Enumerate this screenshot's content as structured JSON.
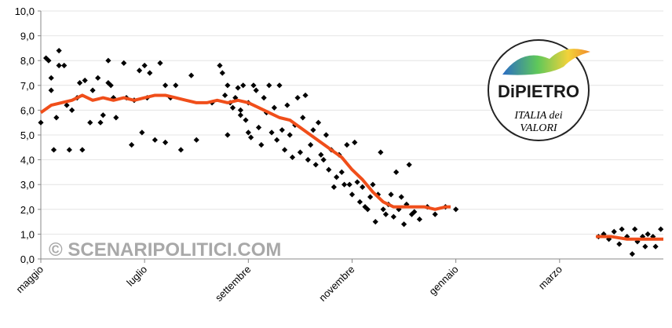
{
  "chart_data": {
    "type": "scatter",
    "xlim": [
      0,
      12
    ],
    "xticks": [
      {
        "value": 0,
        "label": "maggio"
      },
      {
        "value": 2,
        "label": "luglio"
      },
      {
        "value": 4,
        "label": "settembre"
      },
      {
        "value": 6,
        "label": "novembre"
      },
      {
        "value": 8,
        "label": "gennaio"
      },
      {
        "value": 10,
        "label": "marzo"
      }
    ],
    "ylim": [
      0,
      10
    ],
    "yticks": [
      {
        "value": 0,
        "label": "0,0"
      },
      {
        "value": 1,
        "label": "1,0"
      },
      {
        "value": 2,
        "label": "2,0"
      },
      {
        "value": 3,
        "label": "3,0"
      },
      {
        "value": 4,
        "label": "4,0"
      },
      {
        "value": 5,
        "label": "5,0"
      },
      {
        "value": 6,
        "label": "6,0"
      },
      {
        "value": 7,
        "label": "7,0"
      },
      {
        "value": 8,
        "label": "8,0"
      },
      {
        "value": 9,
        "label": "9,0"
      },
      {
        "value": 10,
        "label": "10,0"
      }
    ],
    "grid": true,
    "watermark": "© SCENARIPOLITICI.COM",
    "logo": {
      "title": "DiPIETRO",
      "subtitle": [
        "ITALIA dei",
        "VALORI"
      ]
    },
    "series": [
      {
        "mode": "markers",
        "color": "#000000",
        "x": [
          0.0,
          0.1,
          0.15,
          0.2,
          0.2,
          0.25,
          0.3,
          0.35,
          0.35,
          0.45,
          0.5,
          0.55,
          0.6,
          0.7,
          0.75,
          0.8,
          0.85,
          0.95,
          1.0,
          1.1,
          1.15,
          1.2,
          1.3,
          1.3,
          1.35,
          1.4,
          1.45,
          1.6,
          1.65,
          1.75,
          1.8,
          1.9,
          1.95,
          2.0,
          2.05,
          2.1,
          2.2,
          2.3,
          2.4,
          2.4,
          2.5,
          2.6,
          2.7,
          2.9,
          3.0,
          3.3,
          3.6,
          3.85,
          3.45,
          3.5,
          3.55,
          3.6,
          3.65,
          3.7,
          3.75,
          3.8,
          3.85,
          3.9,
          3.95,
          4.0,
          4.0,
          4.05,
          4.1,
          4.15,
          4.2,
          4.25,
          4.3,
          4.35,
          4.4,
          4.45,
          4.5,
          4.55,
          4.6,
          4.65,
          4.7,
          4.75,
          4.8,
          4.85,
          4.9,
          4.95,
          5.0,
          5.05,
          5.1,
          5.15,
          5.2,
          5.25,
          5.3,
          5.35,
          5.4,
          5.45,
          5.5,
          5.55,
          5.6,
          5.65,
          5.7,
          5.75,
          5.8,
          5.85,
          5.9,
          5.95,
          6.0,
          6.05,
          6.1,
          6.15,
          6.2,
          6.25,
          6.3,
          6.35,
          6.4,
          6.45,
          6.5,
          6.55,
          6.6,
          6.65,
          6.7,
          6.75,
          6.8,
          6.85,
          6.9,
          6.95,
          7.0,
          7.05,
          7.1,
          7.15,
          7.2,
          7.3,
          7.45,
          7.6,
          7.8,
          8.0,
          10.75,
          10.85,
          10.95,
          11.05,
          11.15,
          11.2,
          11.3,
          11.4,
          11.45,
          11.5,
          11.6,
          11.65,
          11.7,
          11.8,
          11.85,
          11.95
        ],
        "values": [
          5.5,
          8.1,
          8.0,
          7.3,
          6.8,
          4.4,
          5.7,
          8.4,
          7.8,
          7.8,
          6.2,
          4.4,
          6.0,
          6.5,
          7.1,
          4.4,
          7.2,
          5.5,
          6.8,
          7.3,
          5.5,
          5.8,
          8.0,
          7.1,
          7.0,
          6.5,
          5.7,
          7.9,
          6.5,
          4.6,
          6.4,
          7.6,
          5.1,
          7.8,
          6.5,
          7.5,
          4.8,
          7.9,
          4.7,
          7.0,
          6.5,
          7.0,
          4.4,
          7.4,
          4.8,
          6.3,
          5.0,
          6.0,
          7.8,
          7.5,
          6.6,
          7.0,
          6.3,
          6.1,
          6.5,
          6.9,
          5.8,
          7.0,
          5.6,
          5.1,
          6.3,
          4.9,
          7.0,
          6.8,
          5.3,
          4.6,
          6.5,
          5.9,
          7.0,
          5.1,
          6.1,
          4.8,
          7.0,
          5.2,
          4.4,
          6.2,
          5.0,
          4.1,
          5.4,
          6.5,
          4.3,
          5.7,
          6.6,
          4.0,
          4.6,
          5.2,
          3.8,
          5.5,
          4.2,
          4.0,
          5.0,
          3.6,
          4.4,
          2.9,
          3.3,
          4.2,
          3.5,
          3.0,
          4.6,
          3.0,
          2.6,
          4.7,
          3.1,
          2.3,
          2.9,
          2.1,
          2.0,
          2.5,
          3.0,
          1.5,
          2.6,
          4.3,
          2.0,
          1.8,
          2.2,
          2.6,
          1.7,
          3.5,
          2.0,
          2.5,
          1.4,
          2.2,
          3.8,
          1.8,
          1.9,
          1.6,
          2.1,
          1.8,
          2.1,
          2.0,
          0.9,
          1.0,
          0.8,
          1.1,
          0.6,
          1.2,
          0.9,
          0.2,
          1.2,
          0.7,
          0.9,
          0.5,
          1.0,
          0.9,
          0.5,
          1.2
        ]
      },
      {
        "mode": "line",
        "color": "#f04e1a",
        "x": [
          0,
          0.2,
          0.4,
          0.6,
          0.8,
          1.0,
          1.2,
          1.4,
          1.6,
          1.8,
          2.0,
          2.2,
          2.4,
          2.6,
          2.8,
          3.0,
          3.2,
          3.4,
          3.6,
          3.8,
          4.0,
          4.2,
          4.4,
          4.6,
          4.8,
          5.0,
          5.2,
          5.4,
          5.6,
          5.8,
          6.0,
          6.2,
          6.4,
          6.6,
          6.8,
          7.0,
          7.2,
          7.4,
          7.6,
          7.8,
          7.9,
          9.0,
          10.7,
          11.0,
          11.3,
          11.6,
          12.0
        ],
        "values": [
          5.9,
          6.2,
          6.3,
          6.4,
          6.6,
          6.4,
          6.5,
          6.4,
          6.5,
          6.4,
          6.5,
          6.6,
          6.6,
          6.5,
          6.4,
          6.3,
          6.3,
          6.4,
          6.3,
          6.4,
          6.3,
          6.1,
          5.9,
          5.7,
          5.6,
          5.3,
          5.0,
          4.7,
          4.4,
          4.1,
          3.6,
          3.2,
          2.7,
          2.3,
          2.1,
          2.1,
          2.1,
          2.1,
          2.0,
          2.1,
          2.1,
          null,
          0.9,
          0.9,
          0.8,
          0.8,
          0.8
        ]
      }
    ]
  }
}
